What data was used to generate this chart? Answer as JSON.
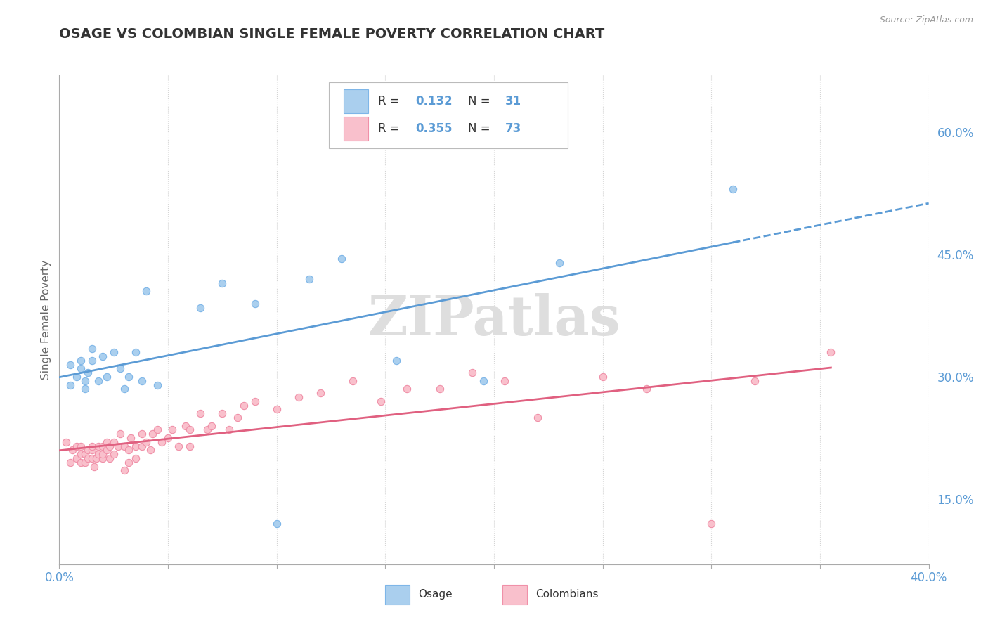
{
  "title": "OSAGE VS COLOMBIAN SINGLE FEMALE POVERTY CORRELATION CHART",
  "source": "Source: ZipAtlas.com",
  "ylabel": "Single Female Poverty",
  "right_yticks": [
    "60.0%",
    "45.0%",
    "30.0%",
    "15.0%"
  ],
  "right_ytick_vals": [
    0.6,
    0.45,
    0.3,
    0.15
  ],
  "xmin": 0.0,
  "xmax": 0.4,
  "ymin": 0.07,
  "ymax": 0.67,
  "osage_R": 0.132,
  "osage_N": 31,
  "colombian_R": 0.355,
  "colombian_N": 73,
  "osage_color": "#aacfee",
  "osage_edge_color": "#7eb6e8",
  "osage_line_color": "#5b9bd5",
  "colombian_color": "#f9c0cc",
  "colombian_edge_color": "#f090a8",
  "colombian_line_color": "#e06080",
  "background_color": "#ffffff",
  "grid_color": "#d0d0d0",
  "title_color": "#333333",
  "axis_label_color": "#5b9bd5",
  "watermark": "ZIPatlas",
  "osage_x": [
    0.005,
    0.005,
    0.008,
    0.01,
    0.01,
    0.012,
    0.012,
    0.013,
    0.015,
    0.015,
    0.018,
    0.02,
    0.022,
    0.025,
    0.028,
    0.03,
    0.032,
    0.035,
    0.038,
    0.04,
    0.045,
    0.065,
    0.075,
    0.09,
    0.1,
    0.115,
    0.13,
    0.155,
    0.195,
    0.23,
    0.31
  ],
  "osage_y": [
    0.29,
    0.315,
    0.3,
    0.31,
    0.32,
    0.285,
    0.295,
    0.305,
    0.32,
    0.335,
    0.295,
    0.325,
    0.3,
    0.33,
    0.31,
    0.285,
    0.3,
    0.33,
    0.295,
    0.405,
    0.29,
    0.385,
    0.415,
    0.39,
    0.12,
    0.42,
    0.445,
    0.32,
    0.295,
    0.44,
    0.53
  ],
  "colombian_x": [
    0.003,
    0.005,
    0.006,
    0.008,
    0.008,
    0.01,
    0.01,
    0.01,
    0.012,
    0.012,
    0.013,
    0.013,
    0.015,
    0.015,
    0.015,
    0.016,
    0.017,
    0.018,
    0.018,
    0.02,
    0.02,
    0.02,
    0.022,
    0.022,
    0.023,
    0.023,
    0.025,
    0.025,
    0.027,
    0.028,
    0.03,
    0.03,
    0.032,
    0.032,
    0.033,
    0.035,
    0.035,
    0.038,
    0.038,
    0.04,
    0.042,
    0.043,
    0.045,
    0.047,
    0.05,
    0.052,
    0.055,
    0.058,
    0.06,
    0.06,
    0.065,
    0.068,
    0.07,
    0.075,
    0.078,
    0.082,
    0.085,
    0.09,
    0.1,
    0.11,
    0.12,
    0.135,
    0.148,
    0.16,
    0.175,
    0.19,
    0.205,
    0.22,
    0.25,
    0.27,
    0.3,
    0.32,
    0.355
  ],
  "colombian_y": [
    0.22,
    0.195,
    0.21,
    0.2,
    0.215,
    0.195,
    0.205,
    0.215,
    0.195,
    0.205,
    0.2,
    0.21,
    0.2,
    0.21,
    0.215,
    0.19,
    0.2,
    0.205,
    0.215,
    0.2,
    0.205,
    0.215,
    0.21,
    0.22,
    0.2,
    0.215,
    0.205,
    0.22,
    0.215,
    0.23,
    0.185,
    0.215,
    0.195,
    0.21,
    0.225,
    0.2,
    0.215,
    0.215,
    0.23,
    0.22,
    0.21,
    0.23,
    0.235,
    0.22,
    0.225,
    0.235,
    0.215,
    0.24,
    0.215,
    0.235,
    0.255,
    0.235,
    0.24,
    0.255,
    0.235,
    0.25,
    0.265,
    0.27,
    0.26,
    0.275,
    0.28,
    0.295,
    0.27,
    0.285,
    0.285,
    0.305,
    0.295,
    0.25,
    0.3,
    0.285,
    0.12,
    0.295,
    0.33
  ]
}
